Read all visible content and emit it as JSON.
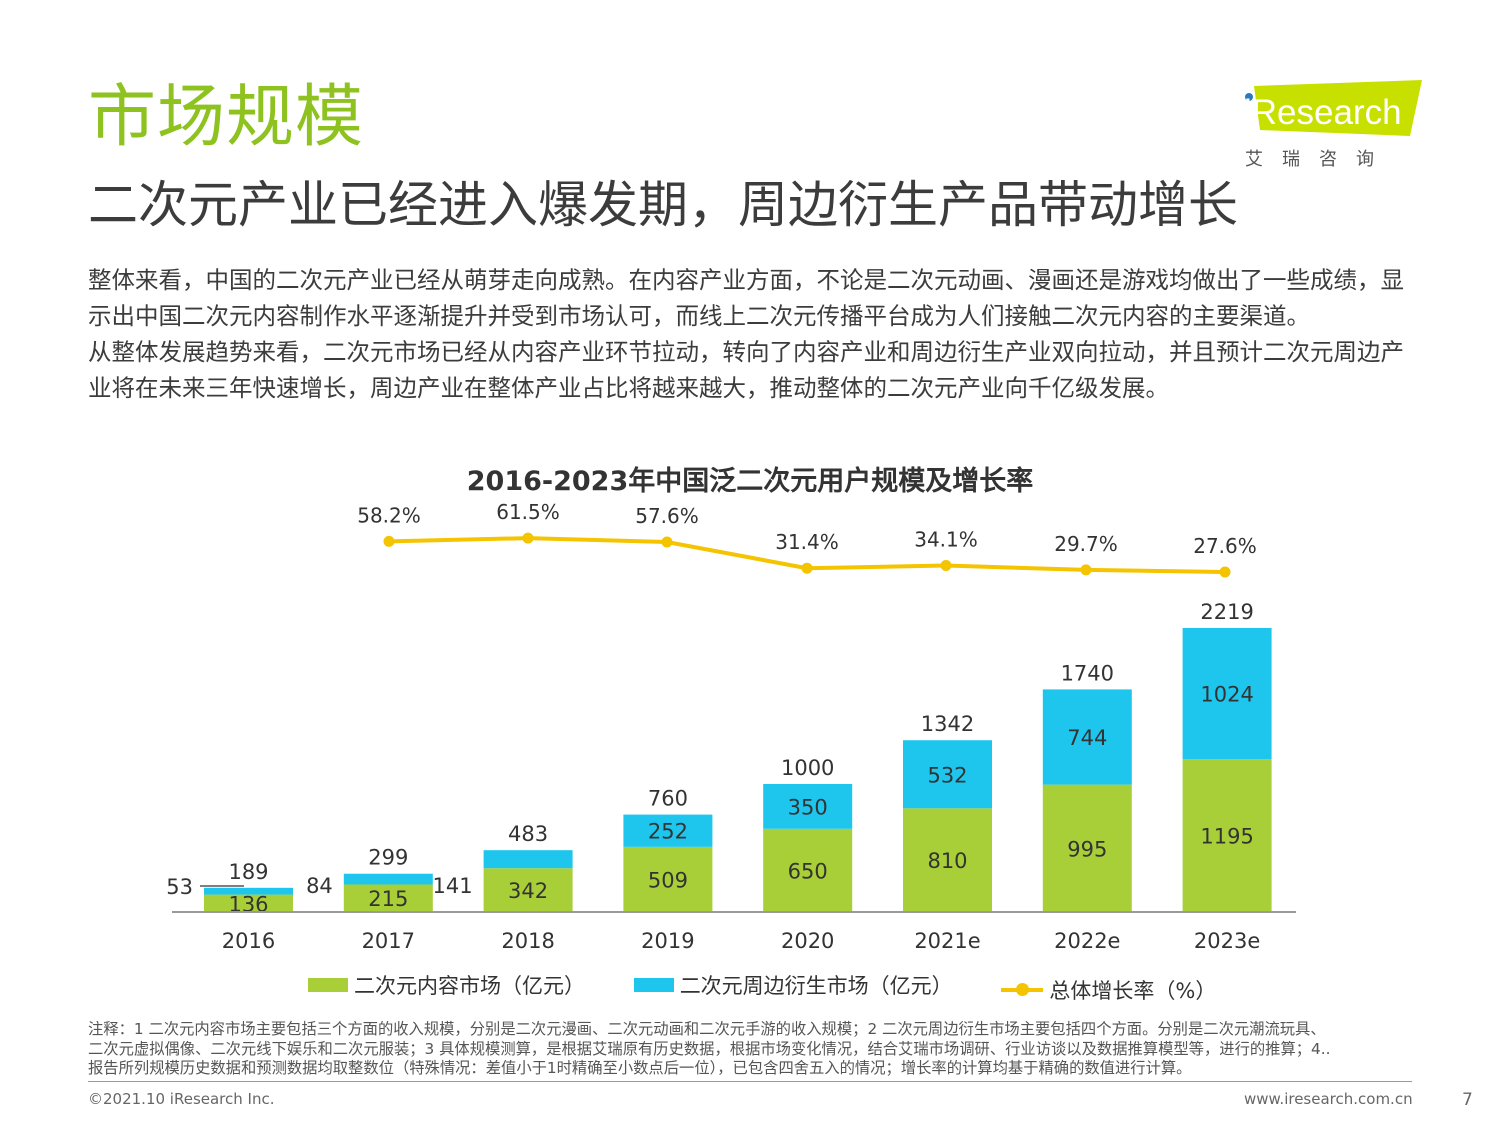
{
  "header": {
    "title": "市场规模",
    "subtitle": "二次元产业已经进入爆发期，周边衍生产品带动增长"
  },
  "logo": {
    "brand": "iResearch",
    "sub": "艾瑞咨询",
    "color": "#c8e000"
  },
  "intro": {
    "p1": "整体来看，中国的二次元产业已经从萌芽走向成熟。在内容产业方面，不论是二次元动画、漫画还是游戏均做出了一些成绩，显示出中国二次元内容制作水平逐渐提升并受到市场认可，而线上二次元传播平台成为人们接触二次元内容的主要渠道。",
    "p2": "从整体发展趋势来看，二次元市场已经从内容产业环节拉动，转向了内容产业和周边衍生产业双向拉动，并且预计二次元周边产业将在未来三年快速增长，周边产业在整体产业占比将越来越大，推动整体的二次元产业向千亿级发展。"
  },
  "chart_data": {
    "type": "bar",
    "stacked": true,
    "title": "2016-2023年中国泛二次元用户规模及增长率",
    "categories": [
      "2016",
      "2017",
      "2018",
      "2019",
      "2020",
      "2021e",
      "2022e",
      "2023e"
    ],
    "series": [
      {
        "name": "二次元内容市场（亿元）",
        "values": [
          136,
          215,
          342,
          509,
          650,
          810,
          995,
          1195
        ],
        "color": "#a9cf38"
      },
      {
        "name": "二次元周边衍生市场（亿元）",
        "values": [
          53,
          84,
          141,
          252,
          350,
          532,
          744,
          1024
        ],
        "color": "#1ec6ee"
      }
    ],
    "totals": [
      189,
      299,
      483,
      760,
      1000,
      1342,
      1740,
      2219
    ],
    "growth_rate": {
      "name": "总体增长率（%）",
      "values": [
        null,
        58.2,
        61.5,
        57.6,
        31.4,
        34.1,
        29.7,
        27.6
      ],
      "labels": [
        "",
        "58.2%",
        "61.5%",
        "57.6%",
        "31.4%",
        "34.1%",
        "29.7%",
        "27.6%"
      ],
      "color": "#f5c400"
    },
    "ylim": [
      0,
      2400
    ],
    "grid": false,
    "legend_position": "bottom"
  },
  "note": {
    "lines": [
      "注释：1 二次元内容市场主要包括三个方面的收入规模，分别是二次元漫画、二次元动画和二次元手游的收入规模；2 二次元周边衍生市场主要包括四个方面。分别是二次元潮流玩具、",
      "二次元虚拟偶像、二次元线下娱乐和二次元服装；3 具体规模测算，是根据艾瑞原有历史数据，根据市场变化情况，结合艾瑞市场调研、行业访谈以及数据推算模型等，进行的推算；4..",
      "报告所列规模历史数据和预测数据均取整数位（特殊情况：差值小于1时精确至小数点后一位），已包含四舍五入的情况；增长率的计算均基于精确的数值进行计算。"
    ]
  },
  "footer": {
    "copyright": "©2021.10 iResearch Inc.",
    "website": "www.iresearch.com.cn",
    "page": "7"
  }
}
